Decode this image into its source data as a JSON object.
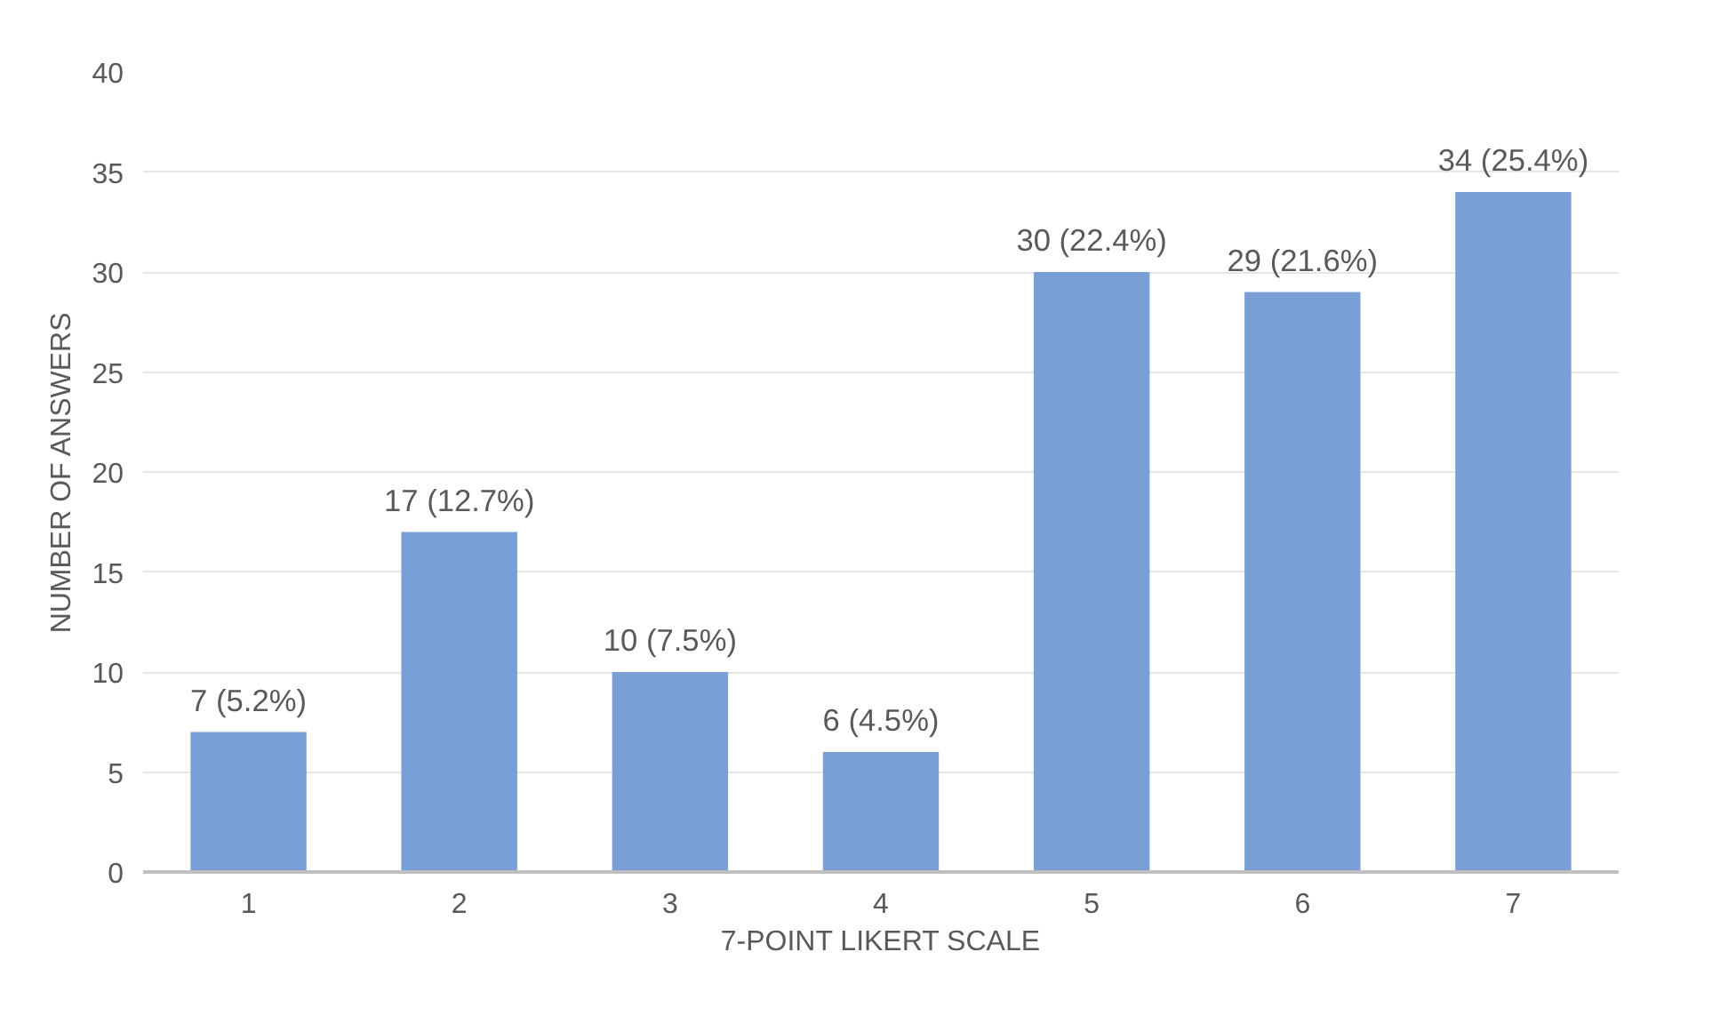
{
  "chart_data": {
    "type": "bar",
    "xlabel": "7-POINT LIKERT SCALE",
    "ylabel": "NUMBER OF ANSWERS",
    "categories": [
      "1",
      "2",
      "3",
      "4",
      "5",
      "6",
      "7"
    ],
    "values": [
      7,
      17,
      10,
      6,
      30,
      29,
      34
    ],
    "value_labels": [
      "7 (5.2%)",
      "17 (12.7%)",
      "10 (7.5%)",
      "6 (4.5%)",
      "30 (22.4%)",
      "29 (21.6%)",
      "34 (25.4%)"
    ],
    "color": "#7a9fd6",
    "ylim": [
      0,
      40
    ],
    "yticks": [
      0,
      5,
      10,
      15,
      20,
      25,
      30,
      35,
      40
    ],
    "grid": "y"
  }
}
